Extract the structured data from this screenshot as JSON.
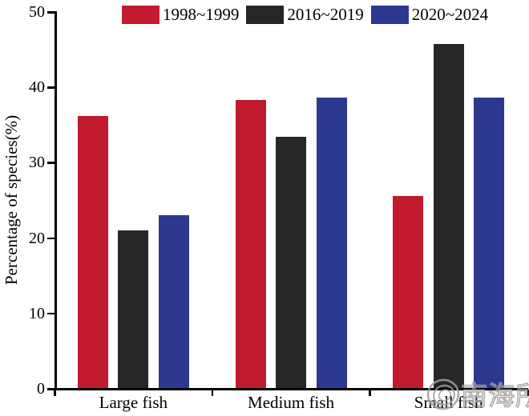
{
  "chart_data": {
    "type": "bar",
    "title": "",
    "xlabel": "",
    "ylabel": "Percentage of species(%)",
    "ylim": [
      0,
      50
    ],
    "yticks": [
      0,
      10,
      20,
      30,
      40,
      50
    ],
    "grid": false,
    "legend_position": "top-center-horizontal",
    "categories": [
      "Large fish",
      "Medium fish",
      "Small fish"
    ],
    "series": [
      {
        "name": "1998~1999",
        "color": "#C21B2D",
        "values": [
          36.2,
          38.3,
          25.6
        ]
      },
      {
        "name": "2016~2019",
        "color": "#262626",
        "values": [
          21.0,
          33.4,
          45.8
        ]
      },
      {
        "name": "2020~2024",
        "color": "#2B3890",
        "values": [
          23.0,
          38.6,
          38.6
        ]
      }
    ]
  },
  "axis_color": "#000000",
  "background_color": "#ffffff",
  "watermark": {
    "icon": "spiral-shell-logo",
    "text": "南海所",
    "color": "#a0a0a0"
  }
}
